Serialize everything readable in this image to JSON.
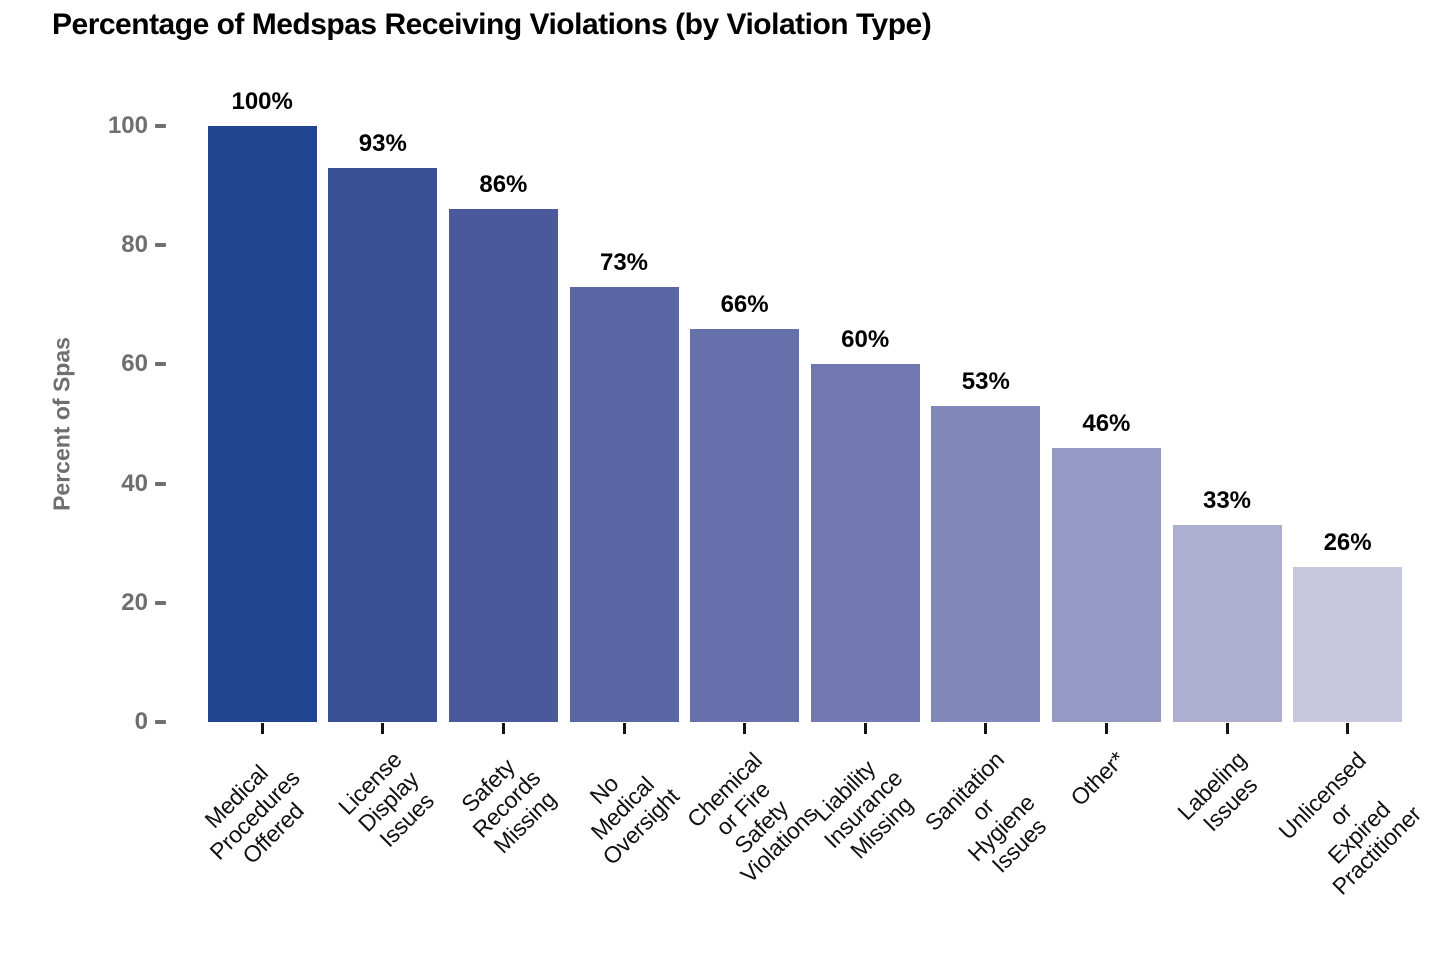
{
  "page": {
    "background": "#ffffff"
  },
  "chart_data": {
    "type": "bar",
    "title": "Percentage of Medspas Receiving Violations (by Violation Type)",
    "ylabel": "Percent of Spas",
    "xlabel": "",
    "ylim": [
      0,
      100
    ],
    "yticks": [
      0,
      20,
      40,
      60,
      80,
      100
    ],
    "grid": false,
    "legend": false,
    "categories": [
      "Medical\nProcedures Offered",
      "License\nDisplay Issues",
      "Safety\nRecords Missing",
      "No Medical\nOversight",
      "Chemical or Fire\nSafety Violations",
      "Liability\nInsurance Missing",
      "Sanitation or\nHygiene Issues",
      "Other*",
      "Labeling Issues",
      "Unlicensed or\nExpired Practitioner"
    ],
    "values": [
      100,
      93,
      86,
      73,
      66,
      60,
      53,
      46,
      33,
      26
    ],
    "value_labels": [
      "100%",
      "93%",
      "86%",
      "73%",
      "66%",
      "60%",
      "53%",
      "46%",
      "33%",
      "26%"
    ],
    "bar_colors": [
      "#1f4490",
      "#3a5094",
      "#49599b",
      "#5967a4",
      "#6670ab",
      "#7077b1",
      "#8287bb",
      "#9599c4",
      "#aeafd0",
      "#c7c8df"
    ],
    "axis_text_color": "#6f6f6f",
    "value_label_color": "#000000",
    "category_label_color": "#111111"
  }
}
